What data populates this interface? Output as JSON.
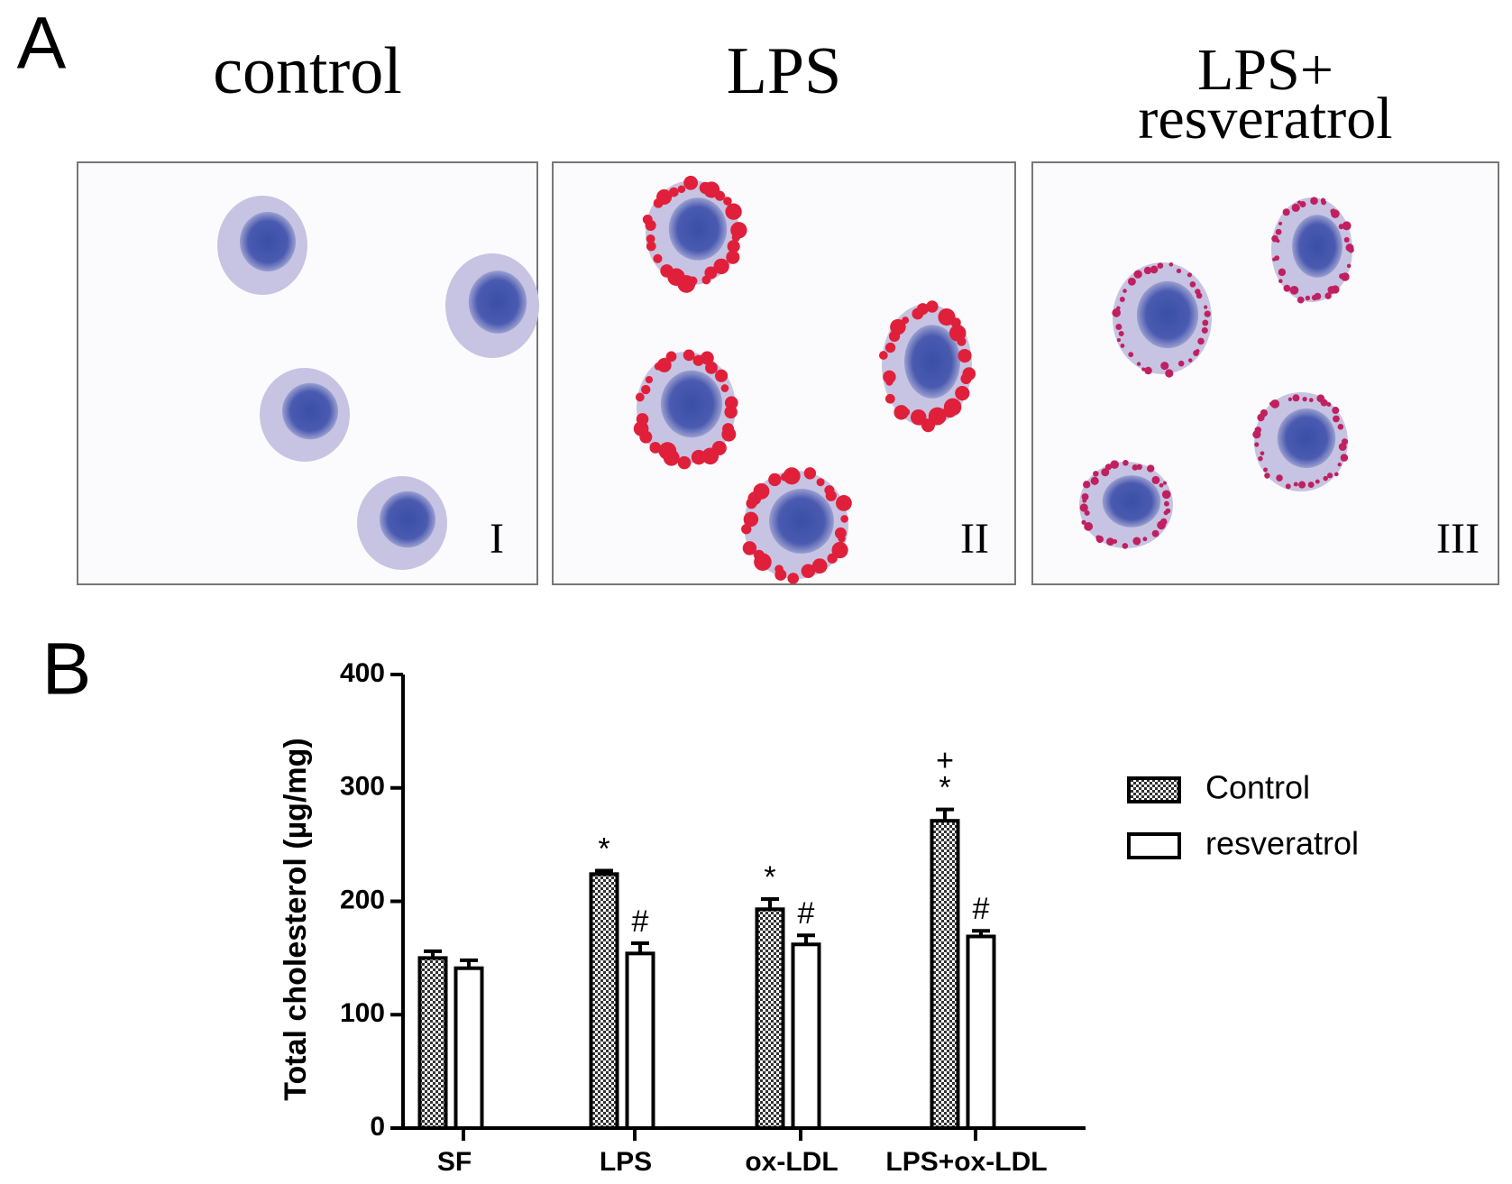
{
  "panel_a": {
    "label": "A",
    "images": [
      {
        "title": [
          "control"
        ],
        "numeral": "I"
      },
      {
        "title": [
          "LPS"
        ],
        "numeral": "II"
      },
      {
        "title": [
          "LPS+",
          "resveratrol"
        ],
        "numeral": "III"
      }
    ]
  },
  "chart_data": {
    "type": "bar",
    "panel_label": "B",
    "y_label": "Total cholesterol (µg/mg)",
    "categories": [
      "SF",
      "LPS",
      "ox-LDL",
      "LPS+ox-LDL"
    ],
    "series": [
      {
        "name": "Control",
        "pattern": "checker",
        "color": "#000000",
        "values": [
          150,
          224,
          193,
          271
        ],
        "errors": [
          6,
          3,
          9,
          10
        ],
        "significance": [
          [],
          [
            "*"
          ],
          [
            "*"
          ],
          [
            "*",
            "+"
          ]
        ]
      },
      {
        "name": "resveratrol",
        "color": "#ffffff",
        "values": [
          141,
          154,
          162,
          169
        ],
        "errors": [
          7,
          9,
          8,
          5
        ],
        "significance": [
          [],
          [
            "#"
          ],
          [
            "#"
          ],
          [
            "#"
          ]
        ]
      }
    ],
    "ylim": [
      0,
      400
    ],
    "yticks": [
      0,
      100,
      200,
      300,
      400
    ],
    "grid": false,
    "legend": "right"
  }
}
